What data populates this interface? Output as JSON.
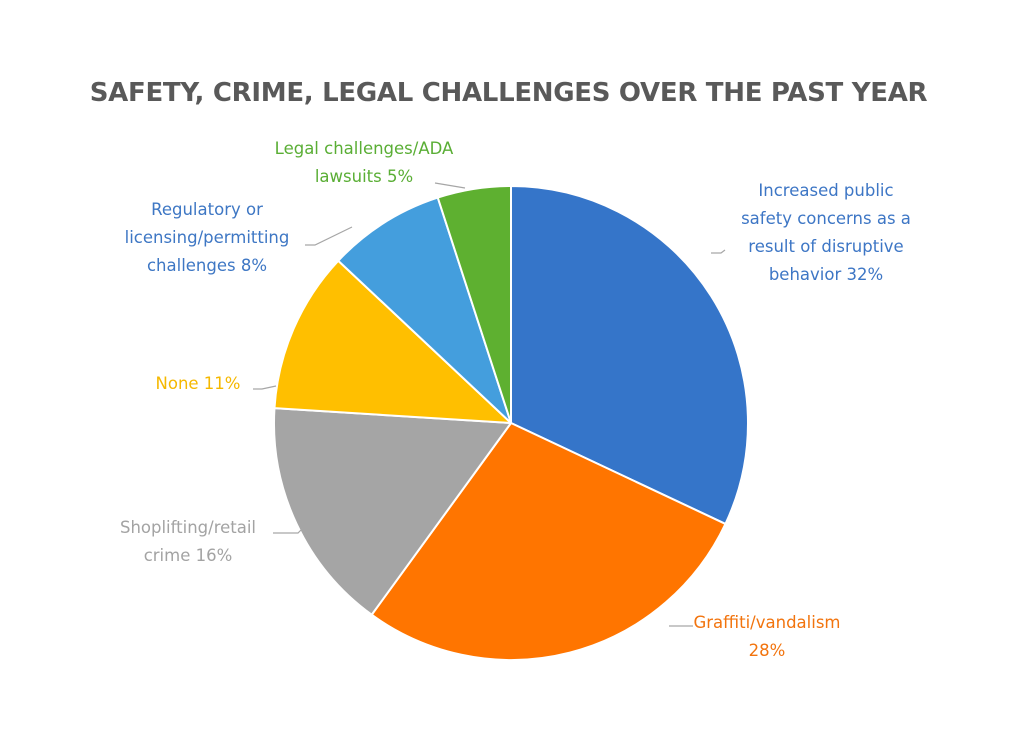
{
  "chart_data": {
    "type": "pie",
    "title": "SAFETY, CRIME, LEGAL CHALLENGES OVER THE PAST YEAR",
    "slices": [
      {
        "label": "Increased public safety concerns as a result of disruptive behavior",
        "value": 32,
        "display_lines": [
          "Increased public",
          "safety concerns as a",
          "result of disruptive",
          "behavior 32%"
        ],
        "color": "#3575C9",
        "label_color": "#3D76C5"
      },
      {
        "label": "Graffiti/vandalism",
        "value": 28,
        "display_lines": [
          "Graffiti/vandalism",
          "28%"
        ],
        "color": "#FF7500",
        "label_color": "#F2740E"
      },
      {
        "label": "Shoplifting/retail crime",
        "value": 16,
        "display_lines": [
          "Shoplifting/retail",
          "crime 16%"
        ],
        "color": "#A5A5A5",
        "label_color": "#A3A3A3"
      },
      {
        "label": "None",
        "value": 11,
        "display_lines": [
          "None 11%"
        ],
        "color": "#FFBF00",
        "label_color": "#F5B800"
      },
      {
        "label": "Regulatory or licensing/permitting challenges",
        "value": 8,
        "display_lines": [
          "Regulatory or",
          "licensing/permitting",
          "challenges 8%"
        ],
        "color": "#449EDD",
        "label_color": "#3E77C4"
      },
      {
        "label": "Legal challenges/ADA lawsuits",
        "value": 5,
        "display_lines": [
          "Legal challenges/ADA",
          "lawsuits 5%"
        ],
        "color": "#5EB030",
        "label_color": "#5AAE35"
      }
    ],
    "start_angle_deg": 0,
    "direction": "clockwise",
    "slice_border_color": "#ffffff",
    "leader_line_color": "#A6A6A6"
  }
}
